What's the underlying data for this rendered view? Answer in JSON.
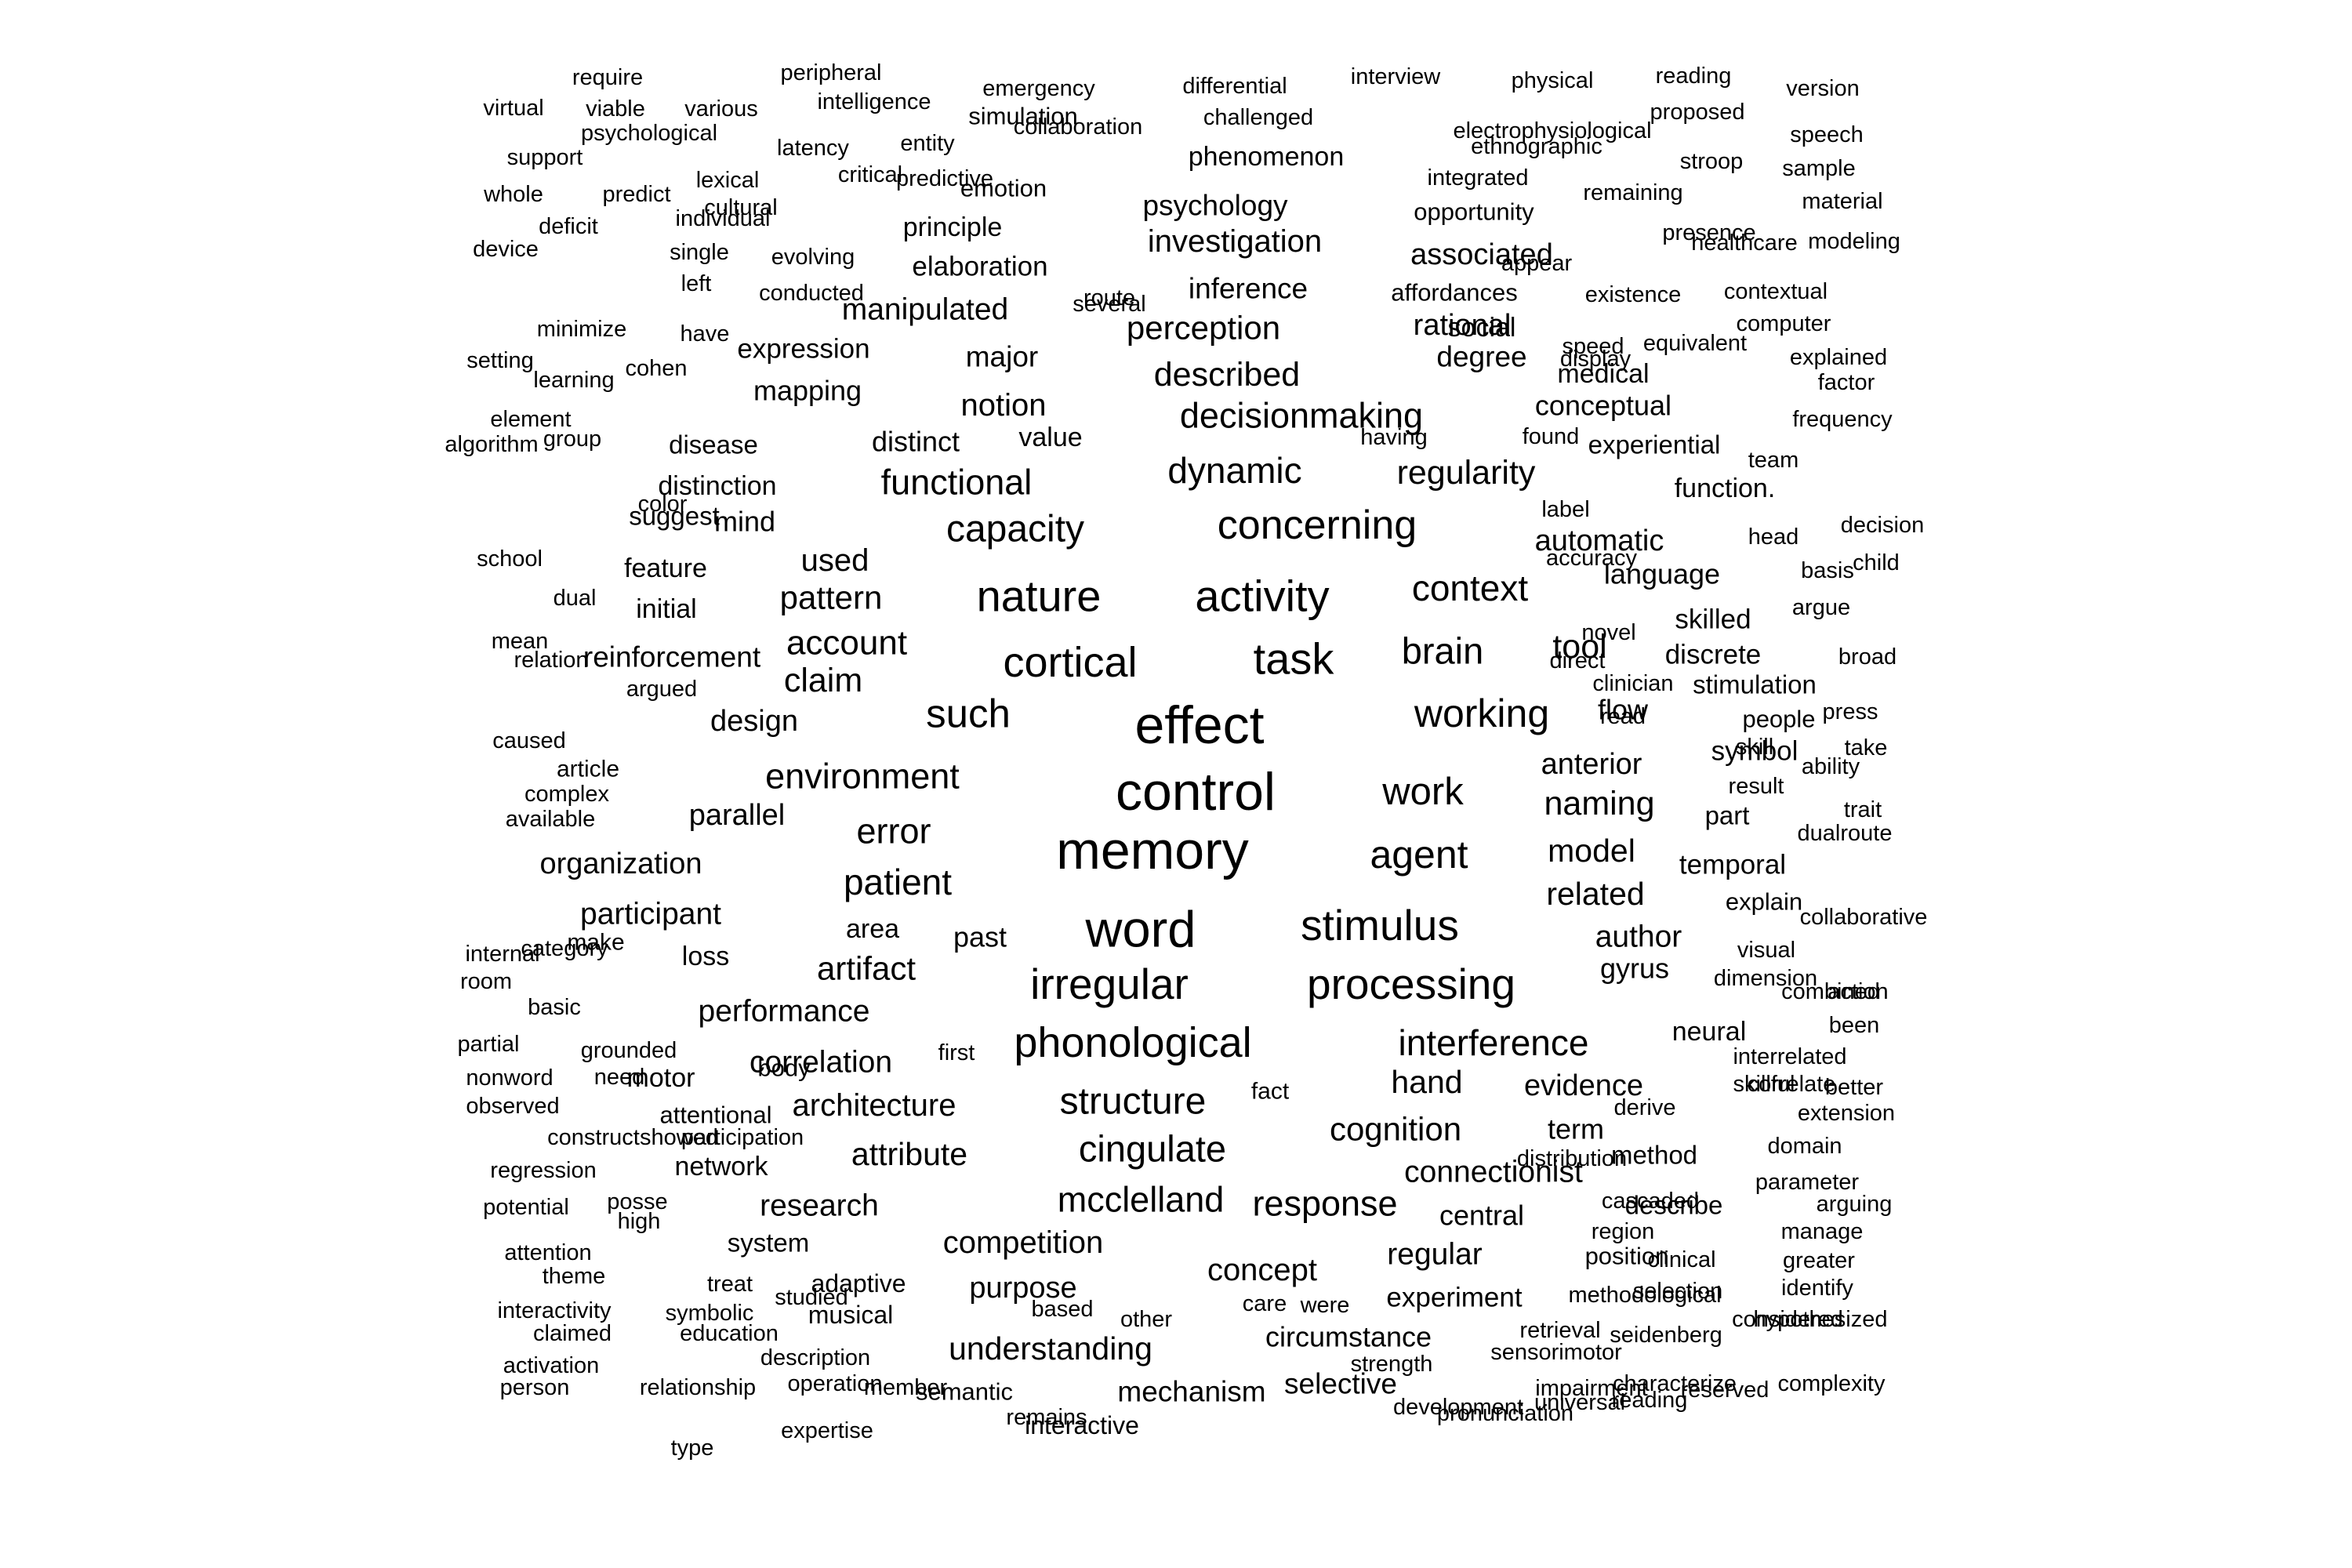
{
  "word_cloud": {
    "words": [
      {
        "text": "effect",
        "size": 6.8
      },
      {
        "text": "control",
        "size": 6.8
      },
      {
        "text": "memory",
        "size": 6.8
      },
      {
        "text": "word",
        "size": 6.5
      },
      {
        "text": "task",
        "size": 5.6
      },
      {
        "text": "stimulus",
        "size": 5.5
      },
      {
        "text": "activity",
        "size": 5.6
      },
      {
        "text": "nature",
        "size": 5.6
      },
      {
        "text": "cortical",
        "size": 5.4
      },
      {
        "text": "irregular",
        "size": 5.5
      },
      {
        "text": "processing",
        "size": 5.5
      },
      {
        "text": "phonological",
        "size": 5.4
      },
      {
        "text": "such",
        "size": 5.1
      },
      {
        "text": "concerning",
        "size": 5.2
      },
      {
        "text": "working",
        "size": 5.0
      },
      {
        "text": "agent",
        "size": 5.0
      },
      {
        "text": "capacity",
        "size": 4.8
      },
      {
        "text": "work",
        "size": 4.9
      },
      {
        "text": "brain",
        "size": 4.7
      },
      {
        "text": "structure",
        "size": 4.8
      },
      {
        "text": "cingulate",
        "size": 4.7
      },
      {
        "text": "interference",
        "size": 4.6
      },
      {
        "text": "patient",
        "size": 4.6
      },
      {
        "text": "context",
        "size": 4.6
      },
      {
        "text": "dynamic",
        "size": 4.6
      },
      {
        "text": "environment",
        "size": 4.5
      },
      {
        "text": "mcclelland",
        "size": 4.5
      },
      {
        "text": "response",
        "size": 4.5
      },
      {
        "text": "functional",
        "size": 4.5
      },
      {
        "text": "decisionmaking",
        "size": 4.5
      },
      {
        "text": "error",
        "size": 4.5
      },
      {
        "text": "described",
        "size": 4.3
      },
      {
        "text": "cognition",
        "size": 4.2
      },
      {
        "text": "perception",
        "size": 4.2
      },
      {
        "text": "regularity",
        "size": 4.3
      },
      {
        "text": "account",
        "size": 4.4
      },
      {
        "text": "naming",
        "size": 4.3
      },
      {
        "text": "tool",
        "size": 4.3
      },
      {
        "text": "hand",
        "size": 4.1
      },
      {
        "text": "claim",
        "size": 4.3
      },
      {
        "text": "pattern",
        "size": 4.2
      },
      {
        "text": "artifact",
        "size": 4.2
      },
      {
        "text": "investigation",
        "size": 4.0
      },
      {
        "text": "concept",
        "size": 4.0
      },
      {
        "text": "competition",
        "size": 4.0
      },
      {
        "text": "understanding",
        "size": 4.1
      },
      {
        "text": "architecture",
        "size": 4.0
      },
      {
        "text": "attribute",
        "size": 4.1
      },
      {
        "text": "related",
        "size": 4.1
      },
      {
        "text": "model",
        "size": 4.1
      },
      {
        "text": "notion",
        "size": 4.0
      },
      {
        "text": "used",
        "size": 4.0
      },
      {
        "text": "manipulated",
        "size": 3.9
      },
      {
        "text": "connectionist",
        "size": 3.9
      },
      {
        "text": "regular",
        "size": 3.9
      },
      {
        "text": "research",
        "size": 3.9
      },
      {
        "text": "participant",
        "size": 3.9
      },
      {
        "text": "organization",
        "size": 3.8
      },
      {
        "text": "performance",
        "size": 3.9
      },
      {
        "text": "correlation",
        "size": 3.9
      },
      {
        "text": "author",
        "size": 3.9
      },
      {
        "text": "evidence",
        "size": 3.8
      },
      {
        "text": "purpose",
        "size": 3.8
      },
      {
        "text": "automatic",
        "size": 3.8
      },
      {
        "text": "anterior",
        "size": 3.8
      },
      {
        "text": "rational",
        "size": 3.8
      },
      {
        "text": "associated",
        "size": 3.8
      },
      {
        "text": "design",
        "size": 3.8
      },
      {
        "text": "parallel",
        "size": 3.8
      },
      {
        "text": "reinforcement",
        "size": 3.7
      },
      {
        "text": "psychology",
        "size": 3.7
      },
      {
        "text": "degree",
        "size": 3.7
      },
      {
        "text": "mechanism",
        "size": 3.7
      },
      {
        "text": "selective",
        "size": 3.7
      },
      {
        "text": "circumstance",
        "size": 3.6
      },
      {
        "text": "inference",
        "size": 3.7
      },
      {
        "text": "major",
        "size": 3.7
      },
      {
        "text": "mapping",
        "size": 3.6
      },
      {
        "text": "distinct",
        "size": 3.6
      },
      {
        "text": "language",
        "size": 3.6
      },
      {
        "text": "conceptual",
        "size": 3.6
      },
      {
        "text": "elaboration",
        "size": 3.5
      },
      {
        "text": "expression",
        "size": 3.5
      },
      {
        "text": "past",
        "size": 3.6
      },
      {
        "text": "mind",
        "size": 3.6
      },
      {
        "text": "term",
        "size": 3.6
      },
      {
        "text": "central",
        "size": 3.6
      },
      {
        "text": "flow",
        "size": 3.6
      },
      {
        "text": "gyrus",
        "size": 3.6
      },
      {
        "text": "temporal",
        "size": 3.5
      },
      {
        "text": "discrete",
        "size": 3.5
      },
      {
        "text": "skilled",
        "size": 3.5
      },
      {
        "text": "symbol",
        "size": 3.5
      },
      {
        "text": "experiment",
        "size": 3.5
      },
      {
        "text": "distinction",
        "size": 3.4
      },
      {
        "text": "area",
        "size": 3.4
      },
      {
        "text": "loss",
        "size": 3.4
      },
      {
        "text": "feature",
        "size": 3.4
      },
      {
        "text": "initial",
        "size": 3.4
      },
      {
        "text": "network",
        "size": 3.4
      },
      {
        "text": "phenomenon",
        "size": 3.4
      },
      {
        "text": "principle",
        "size": 3.4
      },
      {
        "text": "function.",
        "size": 3.4
      },
      {
        "text": "social",
        "size": 3.4
      },
      {
        "text": "medical",
        "size": 3.4
      },
      {
        "text": "value",
        "size": 3.4
      },
      {
        "text": "motor",
        "size": 3.4
      },
      {
        "text": "neural",
        "size": 3.4
      },
      {
        "text": "describe",
        "size": 3.3
      },
      {
        "text": "method",
        "size": 3.3
      },
      {
        "text": "part",
        "size": 3.3
      },
      {
        "text": "stimulation",
        "size": 3.3
      },
      {
        "text": "system",
        "size": 3.3
      },
      {
        "text": "disease",
        "size": 3.3
      },
      {
        "text": "suggest",
        "size": 3.3
      },
      {
        "text": "adaptive",
        "size": 3.2
      },
      {
        "text": "musical",
        "size": 3.2
      },
      {
        "text": "interactive",
        "size": 3.2
      },
      {
        "text": "experiential",
        "size": 3.3
      },
      {
        "text": "semantic",
        "size": 3.1
      },
      {
        "text": "attentional",
        "size": 3.1
      },
      {
        "text": "affordances",
        "size": 3.1
      },
      {
        "text": "simulation",
        "size": 3.1
      },
      {
        "text": "opportunity",
        "size": 3.1
      },
      {
        "text": "body",
        "size": 3.1
      },
      {
        "text": "position",
        "size": 3.1
      },
      {
        "text": "explain",
        "size": 3.1
      },
      {
        "text": "emotion",
        "size": 3.1
      },
      {
        "text": "people",
        "size": 3.1
      },
      {
        "text": "make",
        "size": 3.0
      },
      {
        "text": "article",
        "size": 3.0
      },
      {
        "text": "fact",
        "size": 3.0
      },
      {
        "text": "first",
        "size": 2.9
      },
      {
        "text": "care",
        "size": 2.9
      },
      {
        "text": "other",
        "size": 2.9
      },
      {
        "text": "based",
        "size": 2.9
      },
      {
        "text": "were",
        "size": 2.9
      },
      {
        "text": "emergency",
        "size": 2.9
      },
      {
        "text": "differential",
        "size": 2.9
      },
      {
        "text": "interview",
        "size": 2.9
      },
      {
        "text": "physical",
        "size": 2.9
      },
      {
        "text": "reading",
        "size": 2.9
      },
      {
        "text": "version",
        "size": 2.9
      },
      {
        "text": "require",
        "size": 2.9
      },
      {
        "text": "peripheral",
        "size": 2.9
      },
      {
        "text": "virtual",
        "size": 2.9
      },
      {
        "text": "viable",
        "size": 2.9
      },
      {
        "text": "various",
        "size": 2.9
      },
      {
        "text": "intelligence",
        "size": 2.9
      },
      {
        "text": "collaboration",
        "size": 2.9
      },
      {
        "text": "challenged",
        "size": 2.9
      },
      {
        "text": "electrophysiological",
        "size": 2.9
      },
      {
        "text": "proposed",
        "size": 2.9
      },
      {
        "text": "psychological",
        "size": 2.9
      },
      {
        "text": "latency",
        "size": 2.9
      },
      {
        "text": "entity",
        "size": 2.9
      },
      {
        "text": "ethnographic",
        "size": 2.9
      },
      {
        "text": "speech",
        "size": 2.9
      },
      {
        "text": "support",
        "size": 2.9
      },
      {
        "text": "lexical",
        "size": 2.9
      },
      {
        "text": "predictive",
        "size": 2.9
      },
      {
        "text": "stroop",
        "size": 2.9
      },
      {
        "text": "sample",
        "size": 2.9
      },
      {
        "text": "whole",
        "size": 2.9
      },
      {
        "text": "predict",
        "size": 2.9
      },
      {
        "text": "cultural",
        "size": 2.9
      },
      {
        "text": "critical",
        "size": 2.9
      },
      {
        "text": "integrated",
        "size": 2.9
      },
      {
        "text": "remaining",
        "size": 2.9
      },
      {
        "text": "material",
        "size": 2.9
      },
      {
        "text": "deficit",
        "size": 2.9
      },
      {
        "text": "individual",
        "size": 2.9
      },
      {
        "text": "single",
        "size": 2.9
      },
      {
        "text": "evolving",
        "size": 2.9
      },
      {
        "text": "appear",
        "size": 2.9
      },
      {
        "text": "presence",
        "size": 2.9
      },
      {
        "text": "healthcare",
        "size": 2.9
      },
      {
        "text": "modeling",
        "size": 2.9
      },
      {
        "text": "device",
        "size": 2.9
      },
      {
        "text": "left",
        "size": 2.9
      },
      {
        "text": "conducted",
        "size": 2.9
      },
      {
        "text": "route",
        "size": 2.9
      },
      {
        "text": "existence",
        "size": 2.9
      },
      {
        "text": "contextual",
        "size": 2.9
      },
      {
        "text": "minimize",
        "size": 2.9
      },
      {
        "text": "have",
        "size": 2.9
      },
      {
        "text": "speed",
        "size": 2.9
      },
      {
        "text": "computer",
        "size": 2.9
      },
      {
        "text": "setting",
        "size": 2.9
      },
      {
        "text": "equivalent",
        "size": 2.9
      },
      {
        "text": "several",
        "size": 2.9
      },
      {
        "text": "display",
        "size": 2.9
      },
      {
        "text": "explained",
        "size": 2.9
      },
      {
        "text": "learning",
        "size": 2.9
      },
      {
        "text": "cohen",
        "size": 2.9
      },
      {
        "text": "factor",
        "size": 2.9
      },
      {
        "text": "frequency",
        "size": 2.9
      },
      {
        "text": "element",
        "size": 2.9
      },
      {
        "text": "group",
        "size": 2.9
      },
      {
        "text": "found",
        "size": 2.9
      },
      {
        "text": "team",
        "size": 2.9
      },
      {
        "text": "algorithm",
        "size": 2.9
      },
      {
        "text": "having",
        "size": 2.9
      },
      {
        "text": "color",
        "size": 2.9
      },
      {
        "text": "accuracy",
        "size": 2.9
      },
      {
        "text": "label",
        "size": 2.9
      },
      {
        "text": "decision",
        "size": 2.9
      },
      {
        "text": "head",
        "size": 2.9
      },
      {
        "text": "child",
        "size": 2.9
      },
      {
        "text": "school",
        "size": 2.9
      },
      {
        "text": "basis",
        "size": 2.9
      },
      {
        "text": "dual",
        "size": 2.9
      },
      {
        "text": "argue",
        "size": 2.9
      },
      {
        "text": "mean",
        "size": 2.9
      },
      {
        "text": "novel",
        "size": 2.9
      },
      {
        "text": "broad",
        "size": 2.9
      },
      {
        "text": "relation",
        "size": 2.9
      },
      {
        "text": "direct",
        "size": 2.9
      },
      {
        "text": "argued",
        "size": 2.9
      },
      {
        "text": "clinician",
        "size": 2.9
      },
      {
        "text": "press",
        "size": 2.9
      },
      {
        "text": "read",
        "size": 2.9
      },
      {
        "text": "take",
        "size": 2.9
      },
      {
        "text": "caused",
        "size": 2.9
      },
      {
        "text": "skill",
        "size": 2.9
      },
      {
        "text": "ability",
        "size": 2.9
      },
      {
        "text": "complex",
        "size": 2.9
      },
      {
        "text": "result",
        "size": 2.9
      },
      {
        "text": "trait",
        "size": 2.9
      },
      {
        "text": "available",
        "size": 2.9
      },
      {
        "text": "dualroute",
        "size": 2.9
      },
      {
        "text": "collaborative",
        "size": 2.9
      },
      {
        "text": "internal",
        "size": 2.9
      },
      {
        "text": "category",
        "size": 2.9
      },
      {
        "text": "visual",
        "size": 2.9
      },
      {
        "text": "room",
        "size": 2.9
      },
      {
        "text": "dimension",
        "size": 2.9
      },
      {
        "text": "basic",
        "size": 2.9
      },
      {
        "text": "combined",
        "size": 2.9
      },
      {
        "text": "action",
        "size": 2.9
      },
      {
        "text": "partial",
        "size": 2.9
      },
      {
        "text": "grounded",
        "size": 2.9
      },
      {
        "text": "been",
        "size": 2.9
      },
      {
        "text": "interrelated",
        "size": 2.9
      },
      {
        "text": "need",
        "size": 2.9
      },
      {
        "text": "correlate",
        "size": 2.9
      },
      {
        "text": "nonword",
        "size": 2.9
      },
      {
        "text": "skillful",
        "size": 2.9
      },
      {
        "text": "better",
        "size": 2.9
      },
      {
        "text": "observed",
        "size": 2.9
      },
      {
        "text": "extension",
        "size": 2.9
      },
      {
        "text": "construct",
        "size": 2.9
      },
      {
        "text": "showed",
        "size": 2.9
      },
      {
        "text": "participation",
        "size": 2.9
      },
      {
        "text": "derive",
        "size": 2.9
      },
      {
        "text": "domain",
        "size": 2.9
      },
      {
        "text": "regression",
        "size": 2.9
      },
      {
        "text": "distribution",
        "size": 2.9
      },
      {
        "text": "parameter",
        "size": 2.9
      },
      {
        "text": "potential",
        "size": 2.9
      },
      {
        "text": "posse",
        "size": 2.9
      },
      {
        "text": "cascaded",
        "size": 2.9
      },
      {
        "text": "arguing",
        "size": 2.9
      },
      {
        "text": "high",
        "size": 2.9
      },
      {
        "text": "region",
        "size": 2.9
      },
      {
        "text": "manage",
        "size": 2.9
      },
      {
        "text": "attention",
        "size": 2.9
      },
      {
        "text": "clinical",
        "size": 2.9
      },
      {
        "text": "greater",
        "size": 2.9
      },
      {
        "text": "theme",
        "size": 2.9
      },
      {
        "text": "treat",
        "size": 2.9
      },
      {
        "text": "selection",
        "size": 2.9
      },
      {
        "text": "identify",
        "size": 2.9
      },
      {
        "text": "interactivity",
        "size": 2.9
      },
      {
        "text": "symbolic",
        "size": 2.9
      },
      {
        "text": "studied",
        "size": 2.9
      },
      {
        "text": "methodological",
        "size": 2.9
      },
      {
        "text": "considered",
        "size": 2.9
      },
      {
        "text": "claimed",
        "size": 2.9
      },
      {
        "text": "education",
        "size": 2.9
      },
      {
        "text": "retrieval",
        "size": 2.9
      },
      {
        "text": "seidenberg",
        "size": 2.9
      },
      {
        "text": "hypothesized",
        "size": 2.9
      },
      {
        "text": "activation",
        "size": 2.9
      },
      {
        "text": "description",
        "size": 2.9
      },
      {
        "text": "operation",
        "size": 2.9
      },
      {
        "text": "strength",
        "size": 2.9
      },
      {
        "text": "sensorimotor",
        "size": 2.9
      },
      {
        "text": "characterize",
        "size": 2.9
      },
      {
        "text": "complexity",
        "size": 2.9
      },
      {
        "text": "person",
        "size": 2.9
      },
      {
        "text": "relationship",
        "size": 2.9
      },
      {
        "text": "member",
        "size": 2.9
      },
      {
        "text": "development",
        "size": 2.9
      },
      {
        "text": "impairment",
        "size": 2.9
      },
      {
        "text": "reserved",
        "size": 2.9
      },
      {
        "text": "pronunciation",
        "size": 2.9
      },
      {
        "text": "type",
        "size": 2.9
      },
      {
        "text": "expertise",
        "size": 2.9
      },
      {
        "text": "remains",
        "size": 2.9
      },
      {
        "text": "universal",
        "size": 2.9
      },
      {
        "text": "reading",
        "size": 2.9
      }
    ]
  }
}
